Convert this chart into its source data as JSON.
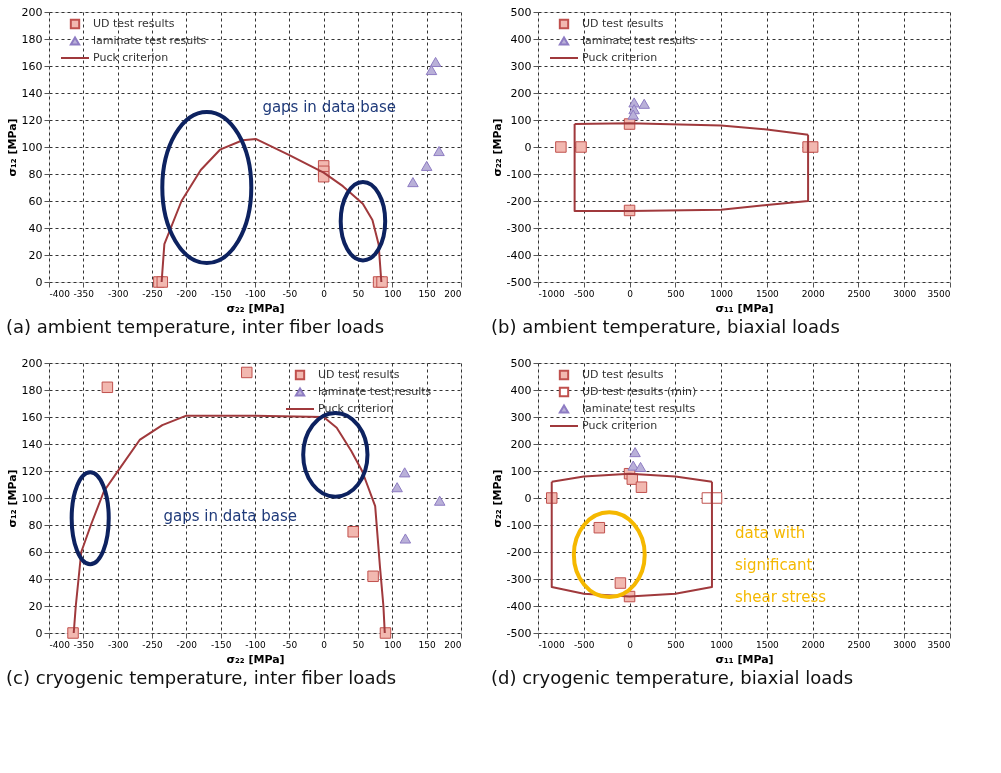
{
  "chart_data": [
    {
      "type": "scatter",
      "title": "(a) ambient temperature, inter fiber loads",
      "xlabel": "σ₂₂ [MPa]",
      "ylabel": "σ₁₂ [MPa]",
      "xlim": [
        -400,
        200
      ],
      "xticks": [
        -400,
        -350,
        -300,
        -250,
        -200,
        -150,
        -100,
        -50,
        0,
        50,
        100,
        150,
        200
      ],
      "ylim": [
        0,
        200
      ],
      "yticks": [
        0,
        20,
        40,
        60,
        80,
        100,
        120,
        140,
        160,
        180,
        200
      ],
      "grid": true,
      "legend": "top left",
      "annotations": [
        "gaps in data base"
      ],
      "series": [
        {
          "name": "UD test results",
          "marker": "square",
          "color": "#f2b8b0",
          "x": [
            -240,
            -235,
            0,
            0,
            0,
            80,
            85
          ],
          "values": [
            0,
            0,
            86,
            82,
            78,
            0,
            0
          ]
        },
        {
          "name": "laminate test results",
          "marker": "triangle",
          "color": "#b9b0d8",
          "x": [
            163,
            157,
            168,
            150,
            130
          ],
          "values": [
            163,
            157,
            97,
            86,
            74
          ]
        },
        {
          "name": "Puck criterion",
          "type": "line",
          "marker": "none",
          "color": "#a0393c",
          "x": [
            -236,
            -232,
            -207,
            -179,
            -151,
            -118,
            -99,
            -50,
            0,
            28,
            57,
            71,
            80,
            84
          ],
          "values": [
            0,
            28,
            60,
            83,
            98,
            105,
            106,
            94,
            81,
            71,
            58,
            46,
            28,
            0
          ]
        }
      ]
    },
    {
      "type": "scatter",
      "title": "(b) ambient temperature, biaxial loads",
      "xlabel": "σ₁₁ [MPa]",
      "ylabel": "σ₂₂ [MPa]",
      "xlim": [
        -1000,
        3500
      ],
      "xticks": [
        -1000,
        -500,
        0,
        500,
        1000,
        1500,
        2000,
        2500,
        3000,
        3500
      ],
      "ylim": [
        -500,
        500
      ],
      "yticks": [
        -500,
        -400,
        -300,
        -200,
        -100,
        0,
        100,
        200,
        300,
        400,
        500
      ],
      "grid": true,
      "legend": "top left",
      "series": [
        {
          "name": "UD test results",
          "marker": "square",
          "color": "#f2b8b0",
          "x": [
            -750,
            -530,
            0,
            0,
            1950,
            2000
          ],
          "values": [
            0,
            0,
            85,
            -235,
            0,
            0
          ]
        },
        {
          "name": "laminate test results",
          "marker": "triangle",
          "color": "#b9b0d8",
          "x": [
            50,
            50,
            40,
            160
          ],
          "values": [
            165,
            140,
            120,
            160
          ]
        },
        {
          "name": "Puck criterion",
          "type": "line",
          "marker": "none",
          "color": "#a0393c",
          "x": [
            -600,
            0,
            1000,
            1500,
            1950
          ],
          "values": [
            85,
            88,
            80,
            65,
            45
          ]
        },
        {
          "type": "line",
          "marker": "none",
          "color": "#a0393c",
          "x": [
            -600,
            -600,
            0,
            1000,
            1500,
            1950,
            1950
          ],
          "values": [
            85,
            -237,
            -237,
            -232,
            -215,
            -200,
            45
          ]
        }
      ]
    },
    {
      "type": "scatter",
      "title": "(c) cryogenic temperature, inter fiber loads",
      "xlabel": "σ₂₂ [MPa]",
      "ylabel": "σ₁₂ [MPa]",
      "xlim": [
        -400,
        200
      ],
      "xticks": [
        -400,
        -350,
        -300,
        -250,
        -200,
        -150,
        -100,
        -50,
        0,
        50,
        100,
        150,
        200
      ],
      "ylim": [
        0,
        200
      ],
      "yticks": [
        0,
        20,
        40,
        60,
        80,
        100,
        120,
        140,
        160,
        180,
        200
      ],
      "grid": true,
      "legend": "top right",
      "annotations": [
        "gaps in data base"
      ],
      "series": [
        {
          "name": "UD test results",
          "marker": "square",
          "color": "#f2b8b0",
          "x": [
            -365,
            -315,
            -112,
            43,
            72,
            90
          ],
          "values": [
            0,
            182,
            193,
            75,
            42,
            0
          ]
        },
        {
          "name": "laminate test results",
          "marker": "triangle",
          "color": "#b9b0d8",
          "x": [
            118,
            107,
            169,
            119
          ],
          "values": [
            119,
            108,
            98,
            70
          ]
        },
        {
          "name": "Puck criterion",
          "type": "line",
          "marker": "none",
          "color": "#a0393c",
          "x": [
            -364,
            -361,
            -353,
            -339,
            -320,
            -301,
            -268,
            -235,
            -200,
            -100,
            0,
            19,
            40,
            56,
            75,
            82,
            87,
            89
          ],
          "values": [
            0,
            20,
            60,
            80,
            105,
            119,
            143,
            154,
            161,
            161,
            160,
            152,
            135,
            120,
            94,
            49,
            20,
            0
          ]
        }
      ]
    },
    {
      "type": "scatter",
      "title": "(d) cryogenic temperature, biaxial loads",
      "xlabel": "σ₁₁ [MPa]",
      "ylabel": "σ₂₂ [MPa]",
      "xlim": [
        -1000,
        3500
      ],
      "xticks": [
        -1000,
        -500,
        0,
        500,
        1000,
        1500,
        2000,
        2500,
        3000,
        3500
      ],
      "ylim": [
        -500,
        500
      ],
      "yticks": [
        -500,
        -400,
        -300,
        -200,
        -100,
        0,
        100,
        200,
        300,
        400,
        500
      ],
      "grid": true,
      "legend": "top left",
      "annotations": [
        "data with\nsignificant\nshear stress"
      ],
      "series": [
        {
          "name": "UD test results",
          "marker": "square",
          "color": "#f2b8b0",
          "x": [
            -850,
            0,
            30,
            130,
            -330,
            -100,
            0
          ],
          "values": [
            0,
            90,
            70,
            40,
            -110,
            -315,
            -365
          ]
        },
        {
          "name": "UD test results (min)",
          "marker": "square",
          "color": "#ffffff",
          "x": [
            850,
            950
          ],
          "values": [
            0,
            0
          ]
        },
        {
          "name": "laminate test results",
          "marker": "triangle",
          "color": "#b9b0d8",
          "x": [
            60,
            40,
            120
          ],
          "values": [
            170,
            120,
            115
          ]
        },
        {
          "name": "Puck criterion",
          "type": "line",
          "marker": "none",
          "color": "#a0393c",
          "x": [
            -850,
            -500,
            0,
            500,
            900
          ],
          "values": [
            60,
            80,
            90,
            80,
            60
          ]
        },
        {
          "type": "line",
          "marker": "none",
          "color": "#a0393c",
          "x": [
            -850,
            -850,
            -500,
            0,
            500,
            900,
            900
          ],
          "values": [
            60,
            -330,
            -355,
            -365,
            -355,
            -330,
            60
          ]
        }
      ]
    }
  ]
}
